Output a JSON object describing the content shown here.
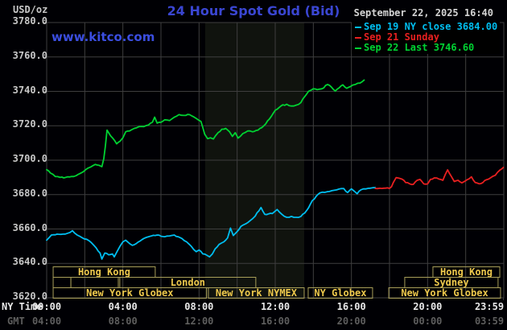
{
  "header": {
    "units": "USD/oz",
    "title": "24 Hour Spot Gold (Bid)",
    "watermark": "www.kitco.com",
    "datetime": "September 22, 2025 16:40"
  },
  "legend": {
    "items": [
      {
        "label": "Sep 19 NY close 3684.00",
        "color": "#00bef0"
      },
      {
        "label": "Sep 21 Sunday",
        "color": "#e82020"
      },
      {
        "label": "Sep 22 Last 3746.60",
        "color": "#00d232"
      }
    ]
  },
  "axes": {
    "ny_time": "NY Time",
    "gmt": "GMT",
    "y_ticks": [
      "3780.0",
      "3760.0",
      "3740.0",
      "3720.0",
      "3700.0",
      "3680.0",
      "3660.0",
      "3640.0",
      "3620.0"
    ],
    "x_ticks": [
      {
        "t": 0,
        "ny": "00:00",
        "gmt": "04:00"
      },
      {
        "t": 4,
        "ny": "04:00",
        "gmt": "08:00"
      },
      {
        "t": 8,
        "ny": "08:00",
        "gmt": "12:00"
      },
      {
        "t": 12,
        "ny": "12:00",
        "gmt": "16:00"
      },
      {
        "t": 16,
        "ny": "16:00",
        "gmt": "20:00"
      },
      {
        "t": 20,
        "ny": "20:00",
        "gmt": "00:00"
      },
      {
        "t": 23.983,
        "ny": "23:59",
        "gmt": "03:59"
      }
    ]
  },
  "sessions": [
    {
      "row": 1,
      "t1": 0.34,
      "t2": 5.7,
      "label": "Hong Kong"
    },
    {
      "row": 1,
      "t1": 20.28,
      "t2": 23.79,
      "label": "Hong Kong"
    },
    {
      "row": 2,
      "t1": 0.34,
      "t2": 1.27,
      "label": ""
    },
    {
      "row": 2,
      "t1": 1.27,
      "t2": 3.76,
      "label": ""
    },
    {
      "row": 2,
      "t1": 3.84,
      "t2": 10.98,
      "label": "London"
    },
    {
      "row": 2,
      "t1": 18.8,
      "t2": 23.7,
      "label": "Sydney"
    },
    {
      "row": 3,
      "t1": 0.34,
      "t2": 8.39,
      "label": "New York Globex"
    },
    {
      "row": 3,
      "t1": 8.49,
      "t2": 13.52,
      "label": "New York NYMEX"
    },
    {
      "row": 3,
      "t1": 13.73,
      "t2": 17.11,
      "label": "NY Globex"
    },
    {
      "row": 3,
      "t1": 17.96,
      "t2": 23.83,
      "label": "New York Globex"
    }
  ],
  "colors": {
    "background": "#000004",
    "grid": "#3e3e3e",
    "band": "#10130e",
    "session_border": "#a89e58",
    "session_text": "#eec94c"
  },
  "chart_data": {
    "type": "line",
    "title": "24 Hour Spot Gold (Bid)",
    "x_unit": "hours NY time",
    "xlim": [
      0,
      24
    ],
    "ylim": [
      3620,
      3780
    ],
    "y_grid_step": 20,
    "x_grid_step": 2,
    "highlight_band_hours": [
      8.32,
      13.52
    ],
    "legend_position": "top-right",
    "series": [
      {
        "name": "Sep 19 NY close",
        "close_value": 3684.0,
        "color": "#00bef0",
        "points": [
          [
            0.0,
            3653.5
          ],
          [
            0.25,
            3656.5
          ],
          [
            0.55,
            3657
          ],
          [
            0.85,
            3657
          ],
          [
            1.1,
            3657.5
          ],
          [
            1.35,
            3659
          ],
          [
            1.6,
            3656.5
          ],
          [
            1.85,
            3655
          ],
          [
            2.1,
            3654
          ],
          [
            2.35,
            3652
          ],
          [
            2.6,
            3649
          ],
          [
            2.8,
            3646
          ],
          [
            2.9,
            3642.5
          ],
          [
            3.05,
            3646
          ],
          [
            3.25,
            3645
          ],
          [
            3.45,
            3645.5
          ],
          [
            3.55,
            3643.8
          ],
          [
            3.7,
            3647
          ],
          [
            3.85,
            3650
          ],
          [
            4.0,
            3652.5
          ],
          [
            4.15,
            3653.5
          ],
          [
            4.3,
            3652
          ],
          [
            4.5,
            3650.5
          ],
          [
            4.7,
            3651.5
          ],
          [
            4.9,
            3653
          ],
          [
            5.1,
            3654.5
          ],
          [
            5.35,
            3655.5
          ],
          [
            5.6,
            3656.3
          ],
          [
            5.8,
            3656.5
          ],
          [
            6.0,
            3655.8
          ],
          [
            6.2,
            3655.5
          ],
          [
            6.45,
            3656
          ],
          [
            6.7,
            3656.5
          ],
          [
            6.9,
            3655.5
          ],
          [
            7.1,
            3654.5
          ],
          [
            7.35,
            3652.5
          ],
          [
            7.6,
            3649.8
          ],
          [
            7.85,
            3646.8
          ],
          [
            8.0,
            3647.8
          ],
          [
            8.2,
            3645.5
          ],
          [
            8.4,
            3644.8
          ],
          [
            8.55,
            3643.8
          ],
          [
            8.7,
            3645.5
          ],
          [
            8.85,
            3648.5
          ],
          [
            9.05,
            3651
          ],
          [
            9.3,
            3652.5
          ],
          [
            9.5,
            3654.8
          ],
          [
            9.65,
            3660.5
          ],
          [
            9.8,
            3656.2
          ],
          [
            10.0,
            3658.5
          ],
          [
            10.2,
            3661.5
          ],
          [
            10.45,
            3663
          ],
          [
            10.7,
            3665
          ],
          [
            10.95,
            3667.5
          ],
          [
            11.25,
            3672.5
          ],
          [
            11.45,
            3668.5
          ],
          [
            11.65,
            3668.8
          ],
          [
            11.85,
            3669
          ],
          [
            12.1,
            3671.3
          ],
          [
            12.35,
            3668.5
          ],
          [
            12.6,
            3666.8
          ],
          [
            12.85,
            3667.3
          ],
          [
            13.1,
            3666.8
          ],
          [
            13.35,
            3667.3
          ],
          [
            13.55,
            3669.3
          ],
          [
            13.75,
            3672.3
          ],
          [
            13.95,
            3676.5
          ],
          [
            14.15,
            3679
          ],
          [
            14.35,
            3681
          ],
          [
            14.6,
            3681.3
          ],
          [
            14.85,
            3681.8
          ],
          [
            15.1,
            3682.5
          ],
          [
            15.35,
            3683.2
          ],
          [
            15.6,
            3683.5
          ],
          [
            15.8,
            3681.2
          ],
          [
            16.0,
            3683.3
          ],
          [
            16.15,
            3682
          ],
          [
            16.3,
            3680.5
          ],
          [
            16.5,
            3682.8
          ],
          [
            16.75,
            3683.3
          ],
          [
            17.0,
            3683.7
          ],
          [
            17.25,
            3684.0
          ]
        ]
      },
      {
        "name": "Sep 21 Sunday",
        "color": "#e82020",
        "points": [
          [
            17.25,
            3683.6
          ],
          [
            17.6,
            3683.6
          ],
          [
            18.0,
            3683.6
          ],
          [
            18.1,
            3684.5
          ],
          [
            18.2,
            3687
          ],
          [
            18.35,
            3689.9
          ],
          [
            18.5,
            3689.5
          ],
          [
            18.65,
            3689
          ],
          [
            18.85,
            3687
          ],
          [
            19.05,
            3686.3
          ],
          [
            19.25,
            3685.9
          ],
          [
            19.45,
            3688.3
          ],
          [
            19.6,
            3688.8
          ],
          [
            19.8,
            3686.2
          ],
          [
            20.0,
            3686.2
          ],
          [
            20.15,
            3688.8
          ],
          [
            20.35,
            3689.7
          ],
          [
            20.6,
            3689
          ],
          [
            20.8,
            3688.3
          ],
          [
            21.05,
            3694.4
          ],
          [
            21.25,
            3690.5
          ],
          [
            21.4,
            3687.6
          ],
          [
            21.6,
            3688.3
          ],
          [
            21.8,
            3686.8
          ],
          [
            22.05,
            3688.5
          ],
          [
            22.3,
            3690.3
          ],
          [
            22.5,
            3687
          ],
          [
            22.7,
            3686.3
          ],
          [
            22.9,
            3687
          ],
          [
            23.1,
            3688.7
          ],
          [
            23.3,
            3689.7
          ],
          [
            23.55,
            3691.2
          ],
          [
            23.8,
            3694.3
          ],
          [
            23.98,
            3695.8
          ]
        ]
      },
      {
        "name": "Sep 22 Last",
        "last_value": 3746.6,
        "color": "#00d232",
        "points": [
          [
            0.0,
            3694.5
          ],
          [
            0.2,
            3692.5
          ],
          [
            0.45,
            3690.5
          ],
          [
            0.7,
            3690
          ],
          [
            1.0,
            3690
          ],
          [
            1.3,
            3690.5
          ],
          [
            1.55,
            3691
          ],
          [
            1.8,
            3692.5
          ],
          [
            2.05,
            3694.5
          ],
          [
            2.3,
            3696
          ],
          [
            2.55,
            3697.5
          ],
          [
            2.75,
            3697
          ],
          [
            2.9,
            3696.2
          ],
          [
            3.0,
            3701
          ],
          [
            3.08,
            3708
          ],
          [
            3.17,
            3717.5
          ],
          [
            3.28,
            3715.5
          ],
          [
            3.45,
            3713
          ],
          [
            3.67,
            3709.5
          ],
          [
            3.85,
            3711
          ],
          [
            4.0,
            3713
          ],
          [
            4.15,
            3716.5
          ],
          [
            4.35,
            3717
          ],
          [
            4.6,
            3718.5
          ],
          [
            4.85,
            3719.5
          ],
          [
            5.1,
            3719.5
          ],
          [
            5.35,
            3720.5
          ],
          [
            5.55,
            3722
          ],
          [
            5.67,
            3725
          ],
          [
            5.8,
            3721.5
          ],
          [
            6.0,
            3722
          ],
          [
            6.2,
            3723.5
          ],
          [
            6.45,
            3723
          ],
          [
            6.7,
            3725
          ],
          [
            6.95,
            3726.5
          ],
          [
            7.2,
            3726
          ],
          [
            7.5,
            3726.5
          ],
          [
            7.75,
            3725
          ],
          [
            7.95,
            3723.5
          ],
          [
            8.1,
            3722.5
          ],
          [
            8.3,
            3715
          ],
          [
            8.45,
            3712.5
          ],
          [
            8.6,
            3713
          ],
          [
            8.75,
            3712.3
          ],
          [
            9.0,
            3716
          ],
          [
            9.2,
            3718
          ],
          [
            9.4,
            3718.5
          ],
          [
            9.6,
            3716.5
          ],
          [
            9.75,
            3713.8
          ],
          [
            9.9,
            3716
          ],
          [
            10.05,
            3712.8
          ],
          [
            10.3,
            3715.5
          ],
          [
            10.55,
            3717
          ],
          [
            10.8,
            3716.5
          ],
          [
            11.1,
            3717.5
          ],
          [
            11.4,
            3720
          ],
          [
            11.7,
            3724
          ],
          [
            12.0,
            3729
          ],
          [
            12.3,
            3731.5
          ],
          [
            12.6,
            3732.5
          ],
          [
            12.85,
            3731.5
          ],
          [
            13.1,
            3732
          ],
          [
            13.35,
            3733.5
          ],
          [
            13.55,
            3737
          ],
          [
            13.75,
            3740
          ],
          [
            14.0,
            3741.5
          ],
          [
            14.2,
            3741
          ],
          [
            14.45,
            3741.5
          ],
          [
            14.75,
            3744
          ],
          [
            14.95,
            3742.5
          ],
          [
            15.15,
            3740.2
          ],
          [
            15.35,
            3742
          ],
          [
            15.55,
            3743.8
          ],
          [
            15.75,
            3741.8
          ],
          [
            15.95,
            3742.8
          ],
          [
            16.2,
            3744
          ],
          [
            16.45,
            3744.8
          ],
          [
            16.67,
            3746.6
          ]
        ]
      }
    ]
  }
}
